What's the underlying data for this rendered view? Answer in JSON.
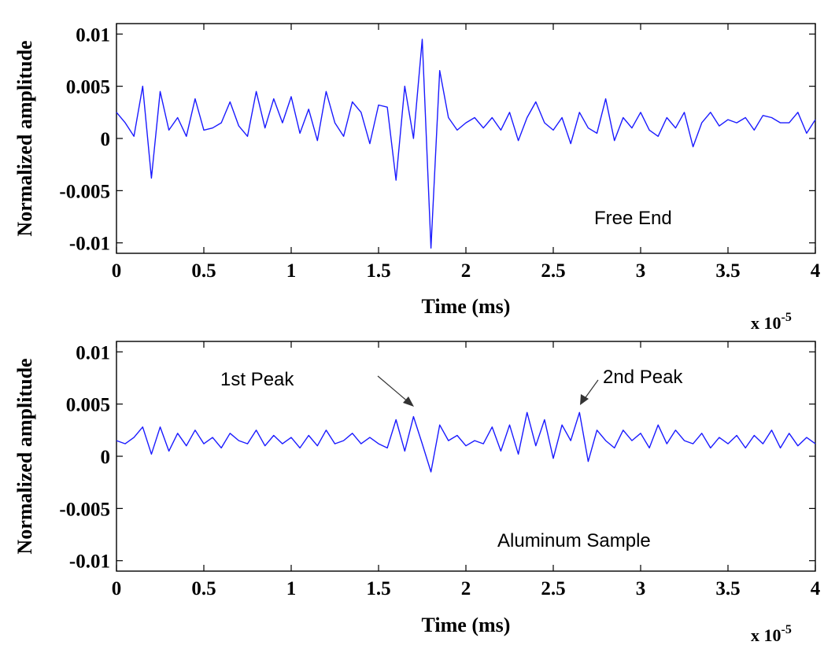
{
  "chart_data": [
    {
      "type": "line",
      "xlabel": "Time (ms)",
      "ylabel": "Normalized amplitude",
      "x_exponent_label": "x 10",
      "x_exponent": "-5",
      "xlim": [
        0,
        4
      ],
      "ylim": [
        -0.011,
        0.011
      ],
      "xticks": [
        "0",
        "0.5",
        "1",
        "1.5",
        "2",
        "2.5",
        "3",
        "3.5",
        "4"
      ],
      "yticks": [
        "0.01",
        "0.005",
        "0",
        "-0.005",
        "-0.01"
      ],
      "ytick_values": [
        0.01,
        0.005,
        0,
        -0.005,
        -0.01
      ],
      "grid": false,
      "annotations": [
        {
          "text": "Free End"
        }
      ],
      "series": [
        {
          "color": "#1a1aff",
          "x": [
            0,
            0.05,
            0.1,
            0.15,
            0.2,
            0.25,
            0.3,
            0.35,
            0.4,
            0.45,
            0.5,
            0.55,
            0.6,
            0.65,
            0.7,
            0.75,
            0.8,
            0.85,
            0.9,
            0.95,
            1.0,
            1.05,
            1.1,
            1.15,
            1.2,
            1.25,
            1.3,
            1.35,
            1.4,
            1.45,
            1.5,
            1.55,
            1.6,
            1.65,
            1.7,
            1.75,
            1.8,
            1.85,
            1.9,
            1.95,
            2.0,
            2.05,
            2.1,
            2.15,
            2.2,
            2.25,
            2.3,
            2.35,
            2.4,
            2.45,
            2.5,
            2.55,
            2.6,
            2.65,
            2.7,
            2.75,
            2.8,
            2.85,
            2.9,
            2.95,
            3.0,
            3.05,
            3.1,
            3.15,
            3.2,
            3.25,
            3.3,
            3.35,
            3.4,
            3.45,
            3.5,
            3.55,
            3.6,
            3.65,
            3.7,
            3.75,
            3.8,
            3.85,
            3.9,
            3.95,
            4.0
          ],
          "y": [
            0.0025,
            0.0015,
            0.0002,
            0.005,
            -0.0038,
            0.0045,
            0.0008,
            0.002,
            0.0002,
            0.0038,
            0.0008,
            0.001,
            0.0015,
            0.0035,
            0.0012,
            0.0002,
            0.0045,
            0.001,
            0.0038,
            0.0015,
            0.004,
            0.0005,
            0.0028,
            -0.0002,
            0.0045,
            0.0015,
            0.0002,
            0.0035,
            0.0025,
            -0.0005,
            0.0032,
            0.003,
            -0.004,
            0.005,
            0.0,
            0.0095,
            -0.0105,
            0.0065,
            0.002,
            0.0008,
            0.0015,
            0.002,
            0.001,
            0.002,
            0.0008,
            0.0025,
            -0.0002,
            0.002,
            0.0035,
            0.0015,
            0.0008,
            0.002,
            -0.0005,
            0.0025,
            0.001,
            0.0005,
            0.0038,
            -0.0002,
            0.002,
            0.001,
            0.0025,
            0.0008,
            0.0002,
            0.002,
            0.001,
            0.0025,
            -0.0008,
            0.0015,
            0.0025,
            0.0012,
            0.0018,
            0.0015,
            0.002,
            0.0008,
            0.0022,
            0.002,
            0.0015,
            0.0015,
            0.0025,
            0.0005,
            0.0018
          ]
        }
      ]
    },
    {
      "type": "line",
      "xlabel": "Time (ms)",
      "ylabel": "Normalized amplitude",
      "x_exponent_label": "x 10",
      "x_exponent": "-5",
      "xlim": [
        0,
        4
      ],
      "ylim": [
        -0.011,
        0.011
      ],
      "xticks": [
        "0",
        "0.5",
        "1",
        "1.5",
        "2",
        "2.5",
        "3",
        "3.5",
        "4"
      ],
      "yticks": [
        "0.01",
        "0.005",
        "0",
        "-0.005",
        "-0.01"
      ],
      "ytick_values": [
        0.01,
        0.005,
        0,
        -0.005,
        -0.01
      ],
      "grid": false,
      "annotations": [
        {
          "text": "1st Peak",
          "arrow_to": [
            1.7,
            0.0042
          ]
        },
        {
          "text": "2nd Peak",
          "arrow_to": [
            2.67,
            0.0045
          ]
        },
        {
          "text": "Aluminum Sample"
        }
      ],
      "series": [
        {
          "color": "#1a1aff",
          "x": [
            0,
            0.05,
            0.1,
            0.15,
            0.2,
            0.25,
            0.3,
            0.35,
            0.4,
            0.45,
            0.5,
            0.55,
            0.6,
            0.65,
            0.7,
            0.75,
            0.8,
            0.85,
            0.9,
            0.95,
            1.0,
            1.05,
            1.1,
            1.15,
            1.2,
            1.25,
            1.3,
            1.35,
            1.4,
            1.45,
            1.5,
            1.55,
            1.6,
            1.65,
            1.7,
            1.75,
            1.8,
            1.85,
            1.9,
            1.95,
            2.0,
            2.05,
            2.1,
            2.15,
            2.2,
            2.25,
            2.3,
            2.35,
            2.4,
            2.45,
            2.5,
            2.55,
            2.6,
            2.65,
            2.7,
            2.75,
            2.8,
            2.85,
            2.9,
            2.95,
            3.0,
            3.05,
            3.1,
            3.15,
            3.2,
            3.25,
            3.3,
            3.35,
            3.4,
            3.45,
            3.5,
            3.55,
            3.6,
            3.65,
            3.7,
            3.75,
            3.8,
            3.85,
            3.9,
            3.95,
            4.0
          ],
          "y": [
            0.0015,
            0.0012,
            0.0018,
            0.0028,
            0.0002,
            0.0028,
            0.0005,
            0.0022,
            0.001,
            0.0025,
            0.0012,
            0.0018,
            0.0008,
            0.0022,
            0.0015,
            0.0012,
            0.0025,
            0.001,
            0.002,
            0.0012,
            0.0018,
            0.0008,
            0.002,
            0.001,
            0.0025,
            0.0012,
            0.0015,
            0.0022,
            0.0012,
            0.0018,
            0.0012,
            0.0008,
            0.0035,
            0.0005,
            0.0038,
            0.0012,
            -0.0015,
            0.003,
            0.0015,
            0.002,
            0.001,
            0.0015,
            0.0012,
            0.0028,
            0.0005,
            0.003,
            0.0002,
            0.0042,
            0.001,
            0.0035,
            -0.0002,
            0.003,
            0.0015,
            0.0042,
            -0.0005,
            0.0025,
            0.0015,
            0.0008,
            0.0025,
            0.0015,
            0.0022,
            0.0008,
            0.003,
            0.0012,
            0.0025,
            0.0015,
            0.0012,
            0.0022,
            0.0008,
            0.0018,
            0.0012,
            0.002,
            0.0008,
            0.002,
            0.0012,
            0.0025,
            0.0008,
            0.0022,
            0.001,
            0.0018,
            0.0012
          ]
        }
      ]
    }
  ]
}
